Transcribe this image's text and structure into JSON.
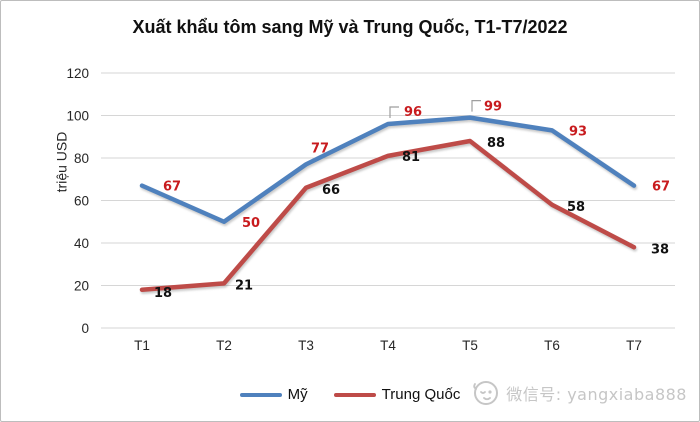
{
  "chart_data": {
    "type": "line",
    "title": "Xuất khẩu tôm sang Mỹ và Trung Quốc, T1-T7/2022",
    "ylabel": "triệu USD",
    "xlabel": "",
    "categories": [
      "T1",
      "T2",
      "T3",
      "T4",
      "T5",
      "T6",
      "T7"
    ],
    "series": [
      {
        "name": "Mỹ",
        "color": "#4F81BD",
        "label_color": "#C81B1E",
        "values": [
          67,
          50,
          77,
          96,
          99,
          93,
          67
        ],
        "label_offsets": [
          [
            30,
            0
          ],
          [
            27,
            0
          ],
          [
            14,
            -17
          ],
          [
            25,
            -13
          ],
          [
            23,
            -12
          ],
          [
            26,
            0
          ],
          [
            27,
            0
          ]
        ],
        "leader_lines": [
          false,
          false,
          false,
          true,
          true,
          false,
          false
        ]
      },
      {
        "name": "Trung Quốc",
        "color": "#BE4B48",
        "label_color": "#111111",
        "values": [
          18,
          21,
          66,
          81,
          88,
          58,
          38
        ],
        "label_offsets": [
          [
            21,
            2
          ],
          [
            20,
            1
          ],
          [
            25,
            1
          ],
          [
            23,
            0
          ],
          [
            26,
            1
          ],
          [
            24,
            1
          ],
          [
            26,
            1
          ]
        ],
        "leader_lines": [
          false,
          false,
          false,
          false,
          false,
          false,
          false
        ]
      }
    ],
    "ylim": [
      0,
      120
    ],
    "ytick_step": 20,
    "yticks": [
      0,
      20,
      40,
      60,
      80,
      100,
      120
    ],
    "grid": true,
    "legend_position": "bottom",
    "gridline_color": "#D6D6D6",
    "leader_color": "#9E9E9E",
    "axis_text_color": "#262626"
  },
  "watermark": {
    "icon": "mascot-face-icon",
    "text": "微信号: yangxiaba888",
    "color": "#C6C6C6"
  }
}
